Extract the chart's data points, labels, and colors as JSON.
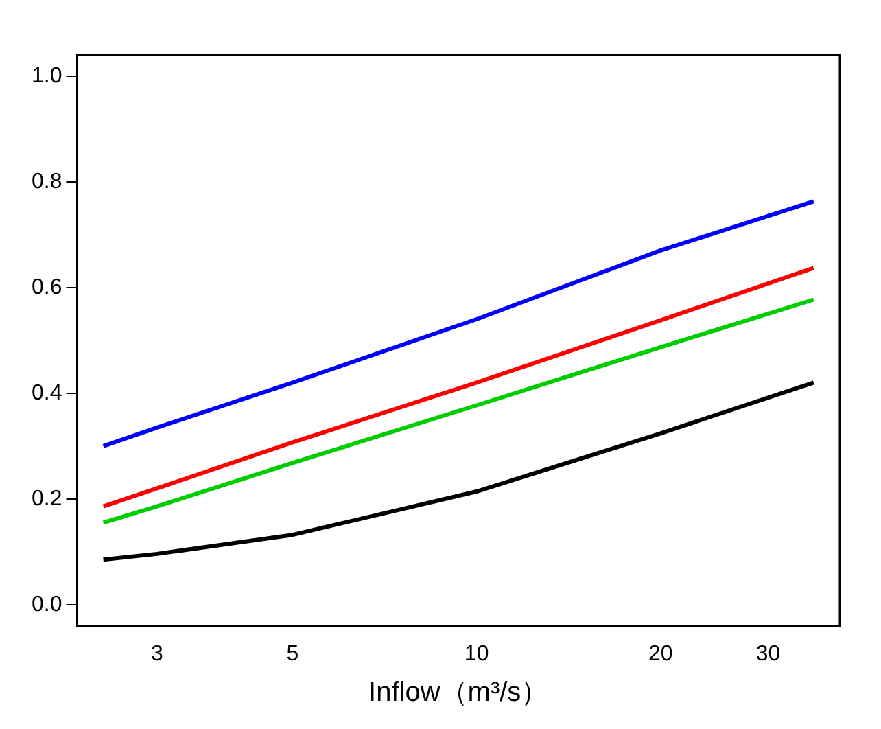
{
  "chart_data": {
    "type": "line",
    "xlabel": "Inflow（m³/s）",
    "log": "x",
    "grid": false,
    "legend": false,
    "marker": "none",
    "line_style": "solid",
    "x": [
      2.45,
      3,
      5,
      10,
      20,
      35.6
    ],
    "series": [
      {
        "color": "#0000ff",
        "values": [
          0.3,
          0.335,
          0.42,
          0.54,
          0.67,
          0.763
        ]
      },
      {
        "color": "#ff0000",
        "values": [
          0.186,
          0.22,
          0.307,
          0.42,
          0.538,
          0.637
        ]
      },
      {
        "color": "#00cd00",
        "values": [
          0.155,
          0.186,
          0.268,
          0.377,
          0.487,
          0.577
        ]
      },
      {
        "color": "#000000",
        "values": [
          0.085,
          0.096,
          0.132,
          0.214,
          0.324,
          0.42
        ]
      }
    ],
    "xlim": [
      2.22,
      39.3
    ],
    "xticks": [
      3,
      5,
      10,
      20,
      30
    ],
    "ylim": [
      -0.04,
      1.04
    ],
    "yticks": [
      {
        "value": 0,
        "label": "0.0"
      },
      {
        "value": 0.2,
        "label": "0.2"
      },
      {
        "value": 0.4,
        "label": "0.4"
      },
      {
        "value": 0.6,
        "label": "0.6"
      },
      {
        "value": 0.8,
        "label": "0.8"
      },
      {
        "value": 1,
        "label": "1.0"
      }
    ]
  }
}
